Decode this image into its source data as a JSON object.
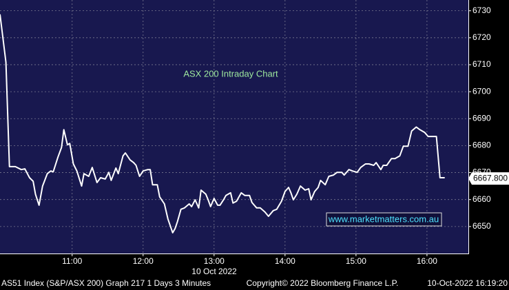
{
  "chart_data": {
    "type": "line",
    "title": "ASX 200 Intraday Chart",
    "annotations": {
      "website": "www.marketmatters.com.au",
      "date": "10 Oct 2022",
      "footer_left": "AS51 Index (S&P/ASX 200) Graph 217 1 Days 3 Minutes",
      "footer_center": "Copyright© 2022 Bloomberg Finance L.P.",
      "footer_right": "10-Oct-2022 16:19:20"
    },
    "x": [
      "09:59",
      "10:04",
      "10:07",
      "10:12",
      "10:17",
      "10:20",
      "10:24",
      "10:27",
      "10:29",
      "10:32",
      "10:35",
      "10:39",
      "10:42",
      "10:44",
      "10:48",
      "10:51",
      "10:53",
      "10:56",
      "10:58",
      "11:01",
      "11:04",
      "11:08",
      "11:10",
      "11:14",
      "11:17",
      "11:21",
      "11:24",
      "11:28",
      "11:31",
      "11:33",
      "11:37",
      "11:39",
      "11:43",
      "11:45",
      "11:49",
      "11:52",
      "11:54",
      "11:57",
      "12:00",
      "12:04",
      "12:06",
      "12:08",
      "12:12",
      "12:14",
      "12:18",
      "12:21",
      "12:25",
      "12:27",
      "12:29",
      "12:32",
      "12:35",
      "12:39",
      "12:41",
      "12:44",
      "12:47",
      "12:49",
      "12:53",
      "12:55",
      "12:57",
      "13:00",
      "13:03",
      "13:05",
      "13:08",
      "13:10",
      "13:14",
      "13:16",
      "13:19",
      "13:23",
      "13:26",
      "13:30",
      "13:32",
      "13:36",
      "13:39",
      "13:43",
      "13:46",
      "13:50",
      "13:53",
      "13:57",
      "14:00",
      "14:03",
      "14:05",
      "14:07",
      "14:10",
      "14:13",
      "14:17",
      "14:20",
      "14:22",
      "14:25",
      "14:28",
      "14:30",
      "14:34",
      "14:37",
      "14:41",
      "14:44",
      "14:48",
      "14:50",
      "14:54",
      "14:57",
      "15:01",
      "15:04",
      "15:08",
      "15:11",
      "15:15",
      "15:17",
      "15:21",
      "15:23",
      "15:26",
      "15:30",
      "15:33",
      "15:37",
      "15:40",
      "15:44",
      "15:47",
      "15:51",
      "15:54",
      "15:58",
      "16:01",
      "16:06",
      "16:08",
      "16:11",
      "16:15"
    ],
    "series": [
      {
        "name": "AS51 Index",
        "color": "#ffffff",
        "values": [
          6728.7,
          6710.9,
          6672.2,
          6672.2,
          6671.1,
          6671.4,
          6668.1,
          6666.8,
          6662.0,
          6657.9,
          6665.0,
          6669.6,
          6670.6,
          6670.3,
          6675.7,
          6679.3,
          6685.9,
          6680.3,
          6680.8,
          6673.2,
          6670.6,
          6665.0,
          6669.6,
          6668.6,
          6671.9,
          6666.3,
          6668.1,
          6667.6,
          6670.1,
          6667.1,
          6671.7,
          6669.6,
          6676.2,
          6677.3,
          6674.7,
          6673.7,
          6672.7,
          6668.6,
          6670.6,
          6671.1,
          6671.1,
          6665.5,
          6665.5,
          6661.0,
          6658.4,
          6652.8,
          6647.7,
          6649.2,
          6651.8,
          6656.4,
          6656.9,
          6658.4,
          6657.4,
          6659.9,
          6656.9,
          6663.5,
          6662.0,
          6659.9,
          6657.4,
          6660.4,
          6657.9,
          6657.9,
          6659.9,
          6661.5,
          6662.5,
          6658.7,
          6659.4,
          6662.5,
          6661.5,
          6661.5,
          6658.9,
          6656.9,
          6656.9,
          6655.4,
          6653.8,
          6655.9,
          6656.4,
          6659.4,
          6663.0,
          6664.5,
          6662.5,
          6659.9,
          6662.0,
          6665.0,
          6663.5,
          6664.0,
          6659.9,
          6663.0,
          6664.5,
          6667.1,
          6665.5,
          6668.6,
          6669.1,
          6670.1,
          6670.1,
          6669.1,
          6671.1,
          6670.6,
          6670.1,
          6671.9,
          6673.2,
          6673.2,
          6672.7,
          6673.7,
          6671.1,
          6672.7,
          6672.7,
          6675.2,
          6675.2,
          6676.2,
          6679.8,
          6679.8,
          6685.4,
          6686.9,
          6685.9,
          6684.9,
          6683.4,
          6683.4,
          6683.4,
          6668.1,
          6668.1
        ]
      }
    ],
    "last_value": {
      "value": 6667.8,
      "label": "6667.800"
    },
    "xlim": [
      "09:59",
      "16:35"
    ],
    "xticks": [
      "11:00",
      "12:00",
      "13:00",
      "14:00",
      "15:00",
      "16:00"
    ],
    "ylim": [
      6640,
      6734
    ],
    "yticks": [
      6650,
      6660,
      6670,
      6680,
      6690,
      6700,
      6710,
      6720,
      6730
    ],
    "grid": true,
    "background": "#18184f"
  }
}
